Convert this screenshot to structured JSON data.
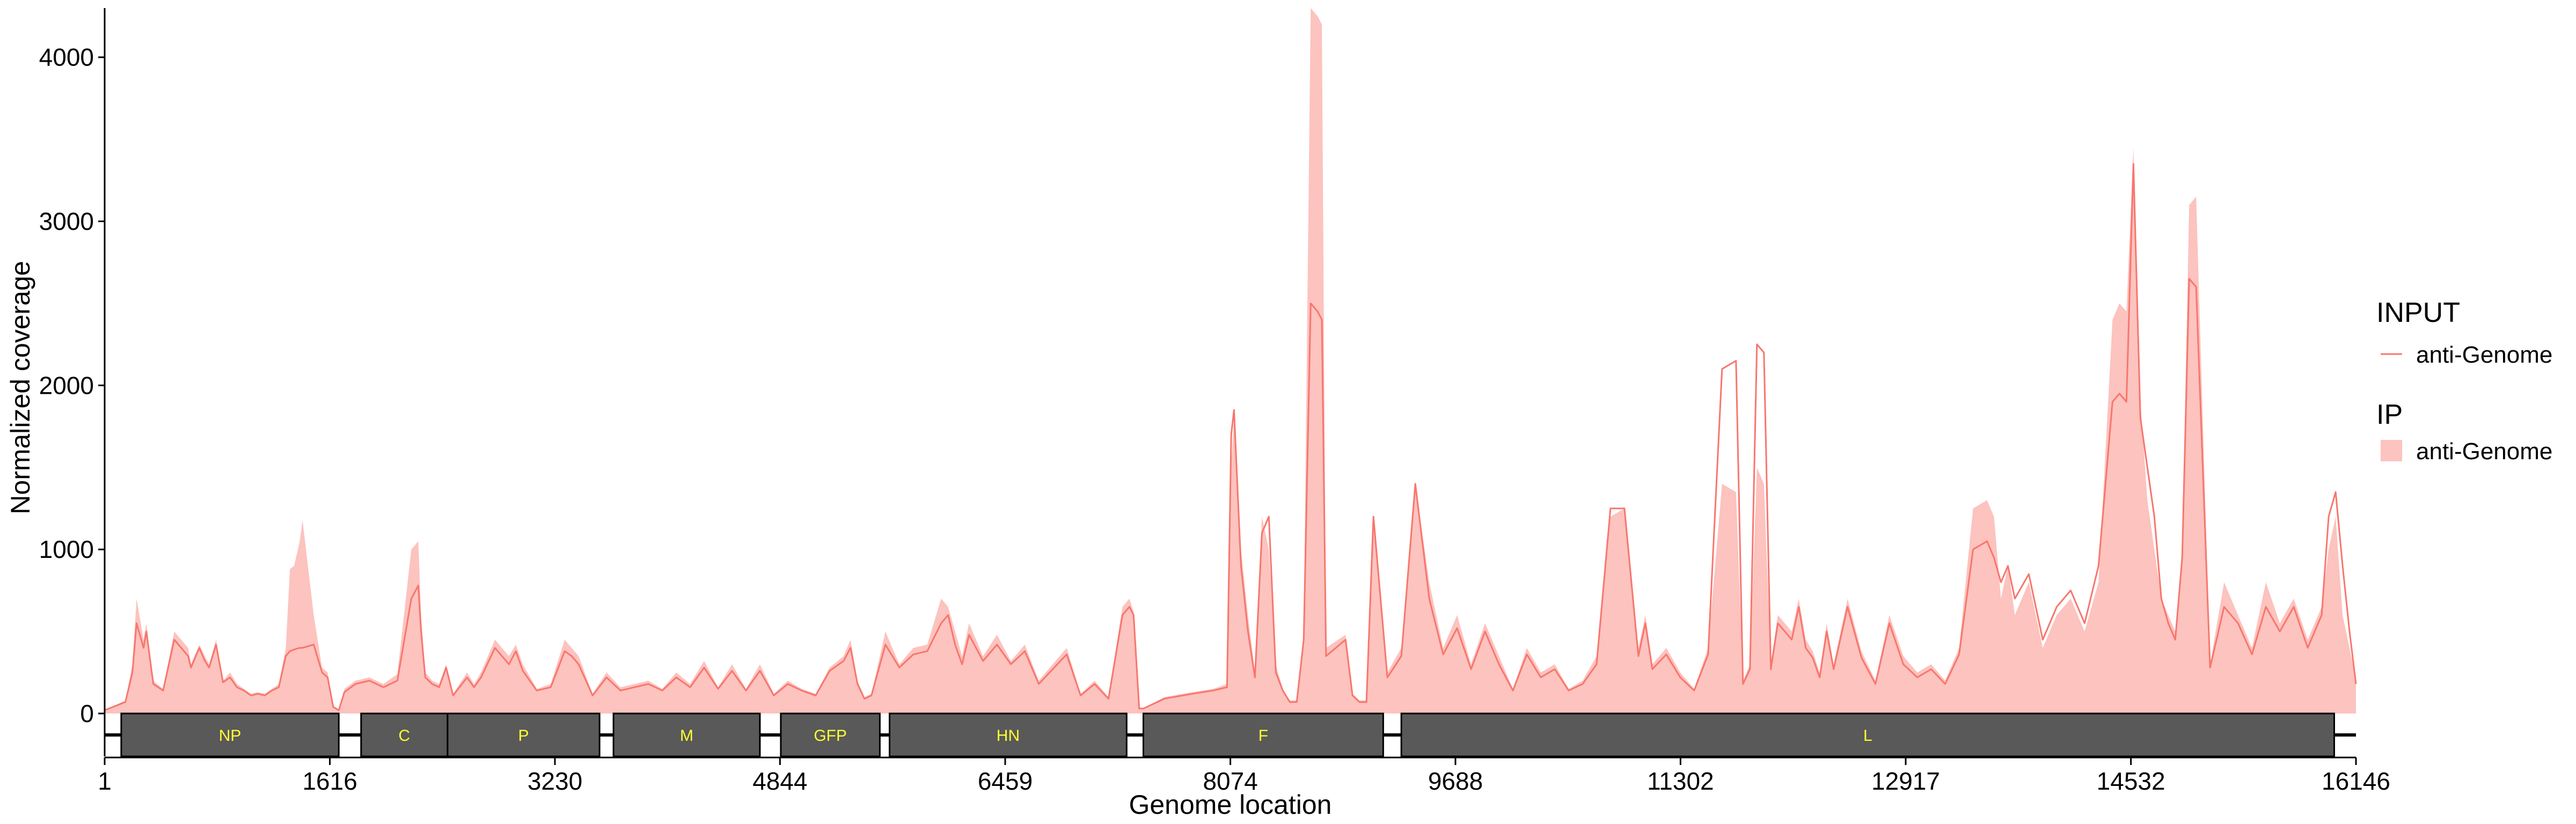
{
  "chart_data": {
    "type": "area",
    "xlabel": "Genome location",
    "ylabel": "Normalized coverage",
    "xlim": [
      1,
      16146
    ],
    "ylim": [
      0,
      4300
    ],
    "x_ticks": [
      1,
      1616,
      3230,
      4844,
      6459,
      8074,
      9688,
      11302,
      12917,
      14532,
      16146
    ],
    "y_ticks": [
      0,
      1000,
      2000,
      3000,
      4000
    ],
    "grid": false,
    "legend_position": "right",
    "legend": [
      {
        "title": "INPUT",
        "label": "anti-Genome",
        "kind": "line",
        "color": "#f8766d"
      },
      {
        "title": "IP",
        "label": "anti-Genome",
        "kind": "fill",
        "color": "#fcc3bf"
      }
    ],
    "genes": [
      {
        "name": "NP",
        "start": 120,
        "end": 1680
      },
      {
        "name": "C",
        "start": 1840,
        "end": 2460
      },
      {
        "name": "P",
        "start": 2460,
        "end": 3550
      },
      {
        "name": "M",
        "start": 3650,
        "end": 4700
      },
      {
        "name": "GFP",
        "start": 4850,
        "end": 5560
      },
      {
        "name": "HN",
        "start": 5630,
        "end": 7330
      },
      {
        "name": "F",
        "start": 7450,
        "end": 9170
      },
      {
        "name": "L",
        "start": 9300,
        "end": 15990
      }
    ],
    "series": [
      {
        "name": "IP",
        "legend_group": "IP",
        "style": "area",
        "color": "#fcc3bf",
        "x": [
          1,
          150,
          200,
          230,
          280,
          300,
          350,
          420,
          500,
          600,
          620,
          680,
          720,
          750,
          800,
          850,
          900,
          950,
          1000,
          1050,
          1100,
          1150,
          1200,
          1250,
          1300,
          1330,
          1360,
          1400,
          1420,
          1500,
          1560,
          1600,
          1640,
          1680,
          1720,
          1800,
          1900,
          2000,
          2100,
          2200,
          2250,
          2270,
          2300,
          2350,
          2400,
          2450,
          2500,
          2600,
          2650,
          2700,
          2800,
          2900,
          2950,
          3000,
          3100,
          3200,
          3300,
          3350,
          3400,
          3500,
          3600,
          3700,
          3800,
          3900,
          4000,
          4100,
          4200,
          4300,
          4400,
          4500,
          4600,
          4700,
          4800,
          4900,
          5000,
          5100,
          5200,
          5300,
          5350,
          5400,
          5450,
          5500,
          5600,
          5700,
          5800,
          5900,
          6000,
          6050,
          6100,
          6150,
          6200,
          6300,
          6400,
          6500,
          6600,
          6700,
          6800,
          6900,
          7000,
          7100,
          7200,
          7300,
          7350,
          7380,
          7420,
          7450,
          7600,
          7800,
          7950,
          8050,
          8080,
          8100,
          8150,
          8200,
          8250,
          8300,
          8350,
          8400,
          8450,
          8500,
          8550,
          8600,
          8650,
          8700,
          8730,
          8760,
          8900,
          8950,
          9000,
          9050,
          9100,
          9200,
          9300,
          9400,
          9500,
          9600,
          9700,
          9800,
          9900,
          10000,
          10100,
          10200,
          10300,
          10400,
          10500,
          10600,
          10700,
          10800,
          10900,
          11000,
          11050,
          11100,
          11200,
          11300,
          11400,
          11500,
          11600,
          11700,
          11750,
          11800,
          11850,
          11900,
          11950,
          12000,
          12100,
          12150,
          12200,
          12250,
          12300,
          12350,
          12400,
          12500,
          12600,
          12700,
          12800,
          12900,
          13000,
          13100,
          13200,
          13300,
          13400,
          13500,
          13550,
          13600,
          13650,
          13700,
          13800,
          13900,
          14000,
          14100,
          14200,
          14300,
          14400,
          14450,
          14500,
          14550,
          14600,
          14650,
          14700,
          14750,
          14800,
          14850,
          14900,
          14950,
          15000,
          15100,
          15200,
          15300,
          15400,
          15500,
          15600,
          15700,
          15800,
          15900,
          15950,
          16000,
          16050,
          16100,
          16146
        ],
        "y": [
          20,
          80,
          300,
          700,
          450,
          550,
          200,
          150,
          500,
          400,
          300,
          420,
          350,
          300,
          450,
          200,
          250,
          180,
          150,
          120,
          130,
          120,
          150,
          180,
          400,
          880,
          900,
          1050,
          1180,
          600,
          280,
          250,
          40,
          20,
          150,
          200,
          220,
          180,
          240,
          1000,
          1050,
          600,
          250,
          200,
          180,
          300,
          120,
          250,
          180,
          250,
          450,
          350,
          420,
          300,
          150,
          180,
          450,
          400,
          350,
          120,
          250,
          160,
          180,
          200,
          150,
          250,
          180,
          320,
          160,
          300,
          150,
          300,
          120,
          200,
          150,
          120,
          280,
          350,
          450,
          200,
          100,
          120,
          500,
          300,
          400,
          420,
          700,
          650,
          500,
          350,
          550,
          350,
          480,
          320,
          420,
          200,
          300,
          400,
          120,
          200,
          100,
          650,
          700,
          620,
          30,
          30,
          100,
          130,
          150,
          180,
          1500,
          1800,
          1000,
          600,
          250,
          1200,
          1000,
          300,
          150,
          80,
          80,
          500,
          4300,
          4250,
          4200,
          400,
          480,
          120,
          80,
          80,
          1200,
          250,
          400,
          1400,
          800,
          400,
          600,
          300,
          550,
          350,
          150,
          400,
          250,
          300,
          150,
          200,
          350,
          1200,
          1250,
          400,
          600,
          300,
          400,
          250,
          150,
          400,
          1400,
          1350,
          200,
          300,
          1500,
          1400,
          300,
          600,
          500,
          700,
          450,
          380,
          250,
          550,
          300,
          700,
          380,
          200,
          600,
          350,
          250,
          300,
          200,
          400,
          1250,
          1300,
          1200,
          700,
          900,
          600,
          800,
          400,
          600,
          700,
          500,
          800,
          2400,
          2500,
          2450,
          3450,
          1900,
          1300,
          1000,
          700,
          600,
          500,
          1000,
          3100,
          3150,
          300,
          800,
          600,
          400,
          800,
          550,
          700,
          450,
          650,
          1000,
          1200,
          600,
          400,
          200
        ]
      },
      {
        "name": "INPUT",
        "legend_group": "INPUT",
        "style": "line",
        "color": "#f8766d",
        "x": [
          1,
          150,
          200,
          230,
          280,
          300,
          350,
          420,
          500,
          600,
          620,
          680,
          720,
          750,
          800,
          850,
          900,
          950,
          1000,
          1050,
          1100,
          1150,
          1200,
          1250,
          1300,
          1330,
          1360,
          1400,
          1420,
          1500,
          1560,
          1600,
          1640,
          1680,
          1720,
          1800,
          1900,
          2000,
          2100,
          2200,
          2250,
          2270,
          2300,
          2350,
          2400,
          2450,
          2500,
          2600,
          2650,
          2700,
          2800,
          2900,
          2950,
          3000,
          3100,
          3200,
          3300,
          3350,
          3400,
          3500,
          3600,
          3700,
          3800,
          3900,
          4000,
          4100,
          4200,
          4300,
          4400,
          4500,
          4600,
          4700,
          4800,
          4900,
          5000,
          5100,
          5200,
          5300,
          5350,
          5400,
          5450,
          5500,
          5600,
          5700,
          5800,
          5900,
          6000,
          6050,
          6100,
          6150,
          6200,
          6300,
          6400,
          6500,
          6600,
          6700,
          6800,
          6900,
          7000,
          7100,
          7200,
          7300,
          7350,
          7380,
          7420,
          7450,
          7600,
          7800,
          7950,
          8050,
          8080,
          8100,
          8150,
          8200,
          8250,
          8300,
          8350,
          8400,
          8450,
          8500,
          8550,
          8600,
          8650,
          8700,
          8730,
          8760,
          8900,
          8950,
          9000,
          9050,
          9100,
          9200,
          9300,
          9400,
          9500,
          9600,
          9700,
          9800,
          9900,
          10000,
          10100,
          10200,
          10300,
          10400,
          10500,
          10600,
          10700,
          10800,
          10900,
          11000,
          11050,
          11100,
          11200,
          11300,
          11400,
          11500,
          11600,
          11700,
          11750,
          11800,
          11850,
          11900,
          11950,
          12000,
          12100,
          12150,
          12200,
          12250,
          12300,
          12350,
          12400,
          12500,
          12600,
          12700,
          12800,
          12900,
          13000,
          13100,
          13200,
          13300,
          13400,
          13500,
          13550,
          13600,
          13650,
          13700,
          13800,
          13900,
          14000,
          14100,
          14200,
          14300,
          14400,
          14450,
          14500,
          14550,
          14600,
          14650,
          14700,
          14750,
          14800,
          14850,
          14900,
          14950,
          15000,
          15100,
          15200,
          15300,
          15400,
          15500,
          15600,
          15700,
          15800,
          15900,
          15950,
          16000,
          16050,
          16100,
          16146
        ],
        "y": [
          20,
          70,
          250,
          550,
          400,
          500,
          180,
          140,
          450,
          350,
          280,
          400,
          320,
          280,
          420,
          190,
          220,
          160,
          140,
          110,
          120,
          110,
          140,
          160,
          350,
          380,
          390,
          400,
          400,
          420,
          250,
          220,
          40,
          20,
          130,
          180,
          200,
          160,
          200,
          700,
          780,
          500,
          220,
          180,
          160,
          280,
          110,
          220,
          160,
          220,
          400,
          300,
          380,
          260,
          140,
          160,
          380,
          350,
          300,
          110,
          220,
          140,
          160,
          180,
          140,
          220,
          160,
          280,
          150,
          260,
          140,
          260,
          110,
          180,
          140,
          110,
          260,
          320,
          400,
          180,
          90,
          110,
          420,
          280,
          360,
          380,
          550,
          600,
          420,
          300,
          480,
          320,
          420,
          300,
          380,
          180,
          270,
          360,
          110,
          180,
          90,
          600,
          650,
          600,
          30,
          30,
          90,
          120,
          140,
          160,
          1700,
          1850,
          900,
          500,
          220,
          1100,
          1200,
          250,
          140,
          70,
          70,
          450,
          2500,
          2450,
          2400,
          350,
          450,
          110,
          70,
          70,
          1200,
          220,
          350,
          1400,
          700,
          360,
          520,
          270,
          500,
          300,
          140,
          360,
          220,
          270,
          140,
          180,
          300,
          1250,
          1250,
          350,
          550,
          270,
          360,
          220,
          140,
          360,
          2100,
          2150,
          180,
          270,
          2250,
          2200,
          270,
          550,
          450,
          650,
          400,
          340,
          220,
          500,
          270,
          650,
          340,
          180,
          550,
          300,
          220,
          270,
          180,
          360,
          1000,
          1050,
          950,
          800,
          900,
          700,
          850,
          450,
          650,
          750,
          550,
          900,
          1900,
          1950,
          1900,
          3350,
          1800,
          1500,
          1200,
          700,
          550,
          450,
          950,
          2650,
          2600,
          280,
          650,
          550,
          360,
          650,
          500,
          650,
          400,
          600,
          1200,
          1350,
          900,
          500,
          180
        ]
      }
    ]
  }
}
